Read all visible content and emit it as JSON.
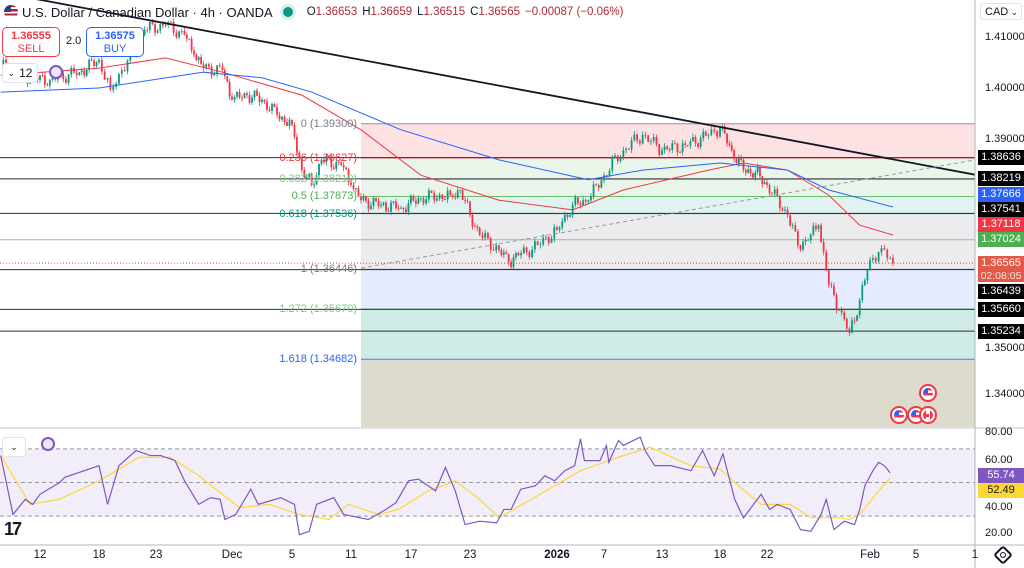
{
  "header": {
    "symbol_title": "U.S. Dollar / Canadian Dollar · 4h · OANDA",
    "open_label": "O",
    "open": "1.36653",
    "high_label": "H",
    "high": "1.36659",
    "low_label": "L",
    "low": "1.36515",
    "close_label": "C",
    "close": "1.36565",
    "change": "−0.00087 (−0.06%)",
    "status_color": "#089981"
  },
  "trade": {
    "sell_price": "1.36555",
    "sell_label": "SELL",
    "spread": "2.0",
    "buy_price": "1.36575",
    "buy_label": "BUY"
  },
  "indicator_collapse": {
    "count": "12"
  },
  "currency_selector": "CAD",
  "colors": {
    "up": "#089981",
    "down": "#f23645",
    "ema_fast": "#f23645",
    "ema_slow": "#2962ff",
    "trendline": "#131722",
    "rsi": "#7e57c2",
    "rsi_ma": "#fdd835"
  },
  "chart_data": [
    {
      "type": "candlestick",
      "instrument": "USDCAD",
      "timeframe": "4h",
      "x_ticks": [
        {
          "label": "12",
          "date": "2025-11-12"
        },
        {
          "label": "18",
          "date": "2025-11-18"
        },
        {
          "label": "23",
          "date": "2025-11-23"
        },
        {
          "label": "Dec",
          "date": "2025-12-01"
        },
        {
          "label": "5",
          "date": "2025-12-05"
        },
        {
          "label": "11",
          "date": "2025-12-11"
        },
        {
          "label": "17",
          "date": "2025-12-17"
        },
        {
          "label": "23",
          "date": "2025-12-23"
        },
        {
          "label": "2026",
          "date": "2026-01-01"
        },
        {
          "label": "7",
          "date": "2026-01-07"
        },
        {
          "label": "13",
          "date": "2026-01-13"
        },
        {
          "label": "18",
          "date": "2026-01-18"
        },
        {
          "label": "22",
          "date": "2026-01-22"
        },
        {
          "label": "Feb",
          "date": "2026-02-01"
        },
        {
          "label": "5",
          "date": "2026-02-05"
        },
        {
          "label": "1",
          "date": "2026-02-10"
        }
      ],
      "y_ticks": [
        "1.41000",
        "1.40000",
        "1.39000",
        "1.35000",
        "1.34000"
      ],
      "close_path": [
        [
          "2025-11-08 00",
          1.4045
        ],
        [
          "2025-11-11 00",
          1.402
        ],
        [
          "2025-11-13 00",
          1.4016
        ],
        [
          "2025-11-16 00",
          1.4031
        ],
        [
          "2025-11-18 00",
          1.4055
        ],
        [
          "2025-11-19 00",
          1.3996
        ],
        [
          "2025-11-20 00",
          1.4035
        ],
        [
          "2025-11-21 00",
          1.4065
        ],
        [
          "2025-11-22 00",
          1.4114
        ],
        [
          "2025-11-24 00",
          1.4124
        ],
        [
          "2025-11-26 00",
          1.4104
        ],
        [
          "2025-11-27 00",
          1.4065
        ],
        [
          "2025-11-28 00",
          1.4039
        ],
        [
          "2025-11-30 00",
          1.4035
        ],
        [
          "2025-12-01 00",
          1.3977
        ],
        [
          "2025-12-02 00",
          1.3986
        ],
        [
          "2025-12-03 00",
          1.3977
        ],
        [
          "2025-12-04 00",
          1.3947
        ],
        [
          "2025-12-05 00",
          1.3928
        ],
        [
          "2025-12-06 00",
          1.3839
        ],
        [
          "2025-12-07 00",
          1.381
        ],
        [
          "2025-12-08 00",
          1.3859
        ],
        [
          "2025-12-10 00",
          1.3849
        ],
        [
          "2025-12-11 00",
          1.381
        ],
        [
          "2025-12-12 00",
          1.378
        ],
        [
          "2025-12-14 00",
          1.3771
        ],
        [
          "2025-12-16 00",
          1.3765
        ],
        [
          "2025-12-18 00",
          1.3784
        ],
        [
          "2025-12-21 00",
          1.379
        ],
        [
          "2025-12-22 00",
          1.38
        ],
        [
          "2025-12-23 00",
          1.3751
        ],
        [
          "2025-12-24 00",
          1.3712
        ],
        [
          "2025-12-26 00",
          1.3682
        ],
        [
          "2025-12-27 00",
          1.3659
        ],
        [
          "2025-12-28 00",
          1.3672
        ],
        [
          "2025-12-30 00",
          1.3692
        ],
        [
          "2026-01-01 00",
          1.3722
        ],
        [
          "2026-01-03 00",
          1.3771
        ],
        [
          "2026-01-05 00",
          1.378
        ],
        [
          "2026-01-07 00",
          1.3829
        ],
        [
          "2026-01-09 00",
          1.3878
        ],
        [
          "2026-01-11 00",
          1.3908
        ],
        [
          "2026-01-13 00",
          1.3878
        ],
        [
          "2026-01-15 00",
          1.3888
        ],
        [
          "2026-01-17 00",
          1.3908
        ],
        [
          "2026-01-18 00",
          1.3922
        ],
        [
          "2026-01-19 00",
          1.3878
        ],
        [
          "2026-01-20 00",
          1.3839
        ],
        [
          "2026-01-21 00",
          1.3835
        ],
        [
          "2026-01-22 00",
          1.381
        ],
        [
          "2026-01-24 00",
          1.3751
        ],
        [
          "2026-01-25 00",
          1.3692
        ],
        [
          "2026-01-26 00",
          1.3702
        ],
        [
          "2026-01-27 00",
          1.3731
        ],
        [
          "2026-01-28 00",
          1.3614
        ],
        [
          "2026-01-29 00",
          1.3565
        ],
        [
          "2026-01-30 00",
          1.352
        ],
        [
          "2026-01-31 00",
          1.3584
        ],
        [
          "2026-02-01 00",
          1.3663
        ],
        [
          "2026-02-02 00",
          1.3686
        ],
        [
          "2026-02-03 00",
          1.36565
        ]
      ],
      "ema_fast": [
        [
          "2025-11-08 00",
          1.4025
        ],
        [
          "2025-11-18 00",
          1.4039
        ],
        [
          "2025-11-24 00",
          1.4059
        ],
        [
          "2025-11-30 00",
          1.4031
        ],
        [
          "2025-12-06 00",
          1.3986
        ],
        [
          "2025-12-12 00",
          1.3918
        ],
        [
          "2025-12-18 00",
          1.3829
        ],
        [
          "2025-12-26 00",
          1.378
        ],
        [
          "2026-01-03 00",
          1.3761
        ],
        [
          "2026-01-09 00",
          1.38
        ],
        [
          "2026-01-17 00",
          1.3839
        ],
        [
          "2026-01-20 00",
          1.3853
        ],
        [
          "2026-01-24 00",
          1.3839
        ],
        [
          "2026-01-28 00",
          1.379
        ],
        [
          "2026-01-31 00",
          1.3731
        ],
        [
          "2026-02-03 00",
          1.37118
        ]
      ],
      "ema_slow": [
        [
          "2025-11-08 00",
          1.3992
        ],
        [
          "2025-11-18 00",
          1.4
        ],
        [
          "2025-11-28 00",
          1.4031
        ],
        [
          "2025-12-03 00",
          1.402
        ],
        [
          "2025-12-07 00",
          1.3992
        ],
        [
          "2025-12-16 00",
          1.3918
        ],
        [
          "2025-12-26 00",
          1.3859
        ],
        [
          "2026-01-05 00",
          1.382
        ],
        [
          "2026-01-11 00",
          1.3839
        ],
        [
          "2026-01-18 00",
          1.3853
        ],
        [
          "2026-01-24 00",
          1.3839
        ],
        [
          "2026-01-28 00",
          1.38
        ],
        [
          "2026-02-03 00",
          1.37666
        ]
      ],
      "trendline": [
        [
          "2025-11-12 00",
          1.4173
        ],
        [
          "2026-02-10 00",
          1.383
        ]
      ],
      "dashed_trendline": [
        [
          "2025-12-12 00",
          1.3647
        ],
        [
          "2026-02-10 00",
          1.3859
        ]
      ],
      "horizontal_lines": [
        1.38636,
        1.38219,
        1.37541,
        1.37024,
        1.36439,
        1.3566,
        1.35234
      ],
      "fibonacci": {
        "start_date": "2025-12-12 00",
        "levels": [
          {
            "ratio": 0,
            "price": 1.393,
            "label": "0 (1.39300)",
            "color": "#787b86",
            "fill": "rgba(242,54,69,0.15)"
          },
          {
            "ratio": 0.236,
            "price": 1.38627,
            "label": "0.236 (1.38627)",
            "color": "#f23645",
            "fill": "rgba(129,199,132,0.16)"
          },
          {
            "ratio": 0.382,
            "price": 1.3821,
            "label": "0.382 (1.38210)",
            "color": "#81c784",
            "fill": "rgba(76,175,80,0.12)"
          },
          {
            "ratio": 0.5,
            "price": 1.37873,
            "label": "0.5 (1.37873)",
            "color": "#4caf50",
            "fill": "rgba(8,153,129,0.12)"
          },
          {
            "ratio": 0.618,
            "price": 1.37536,
            "label": "0.618 (1.37536)",
            "color": "#089981",
            "fill": "rgba(120,123,134,0.14)"
          },
          {
            "ratio": 1,
            "price": 1.36446,
            "label": "1 (1.36446)",
            "color": "#787b86",
            "fill": "rgba(41,98,255,0.12)"
          },
          {
            "ratio": 1.272,
            "price": 1.3567,
            "label": "1.272 (1.35670)",
            "color": "#81c784",
            "fill": "rgba(8,153,129,0.2)"
          },
          {
            "ratio": 1.618,
            "price": 1.34682,
            "label": "1.618 (1.34682)",
            "color": "#2962ff",
            "fill": "rgba(120,110,60,0.25)"
          }
        ]
      },
      "price_tags": [
        {
          "value": "1.38636",
          "bg": "#000000"
        },
        {
          "value": "1.38219",
          "bg": "#000000"
        },
        {
          "value": "1.37666",
          "bg": "#2962ff"
        },
        {
          "value": "1.37541",
          "bg": "#000000"
        },
        {
          "value": "1.37118",
          "bg": "#f23645"
        },
        {
          "value": "1.37024",
          "bg": "#4caf50"
        },
        {
          "value": "1.36565",
          "bg": "#e05a47",
          "countdown": "02:08:05",
          "current": true
        },
        {
          "value": "1.36439",
          "bg": "#000000"
        },
        {
          "value": "1.35660",
          "bg": "#000000"
        },
        {
          "value": "1.35234",
          "bg": "#000000"
        }
      ],
      "events": [
        {
          "flag": "us",
          "date": "2026-02-06 00",
          "row": 0
        },
        {
          "flag": "us",
          "date": "2026-02-03 12",
          "row": 1
        },
        {
          "flag": "us",
          "date": "2026-02-05 00",
          "row": 1
        },
        {
          "flag": "ca",
          "date": "2026-02-06 00",
          "row": 1
        }
      ]
    },
    {
      "type": "line",
      "indicator": "RSI",
      "ylim": [
        10,
        80
      ],
      "y_ticks": [
        "80.00",
        "60.00",
        "40.00",
        "20.00"
      ],
      "bands": [
        70,
        50,
        30
      ],
      "rsi_value": "55.74",
      "ma_value": "52.49",
      "rsi": [
        [
          "2025-11-08 00",
          66
        ],
        [
          "2025-11-09 06",
          31
        ],
        [
          "2025-11-10 12",
          40
        ],
        [
          "2025-11-11 06",
          37
        ],
        [
          "2025-11-12 00",
          43
        ],
        [
          "2025-11-14 00",
          50
        ],
        [
          "2025-11-14 12",
          53
        ],
        [
          "2025-11-18 00",
          60
        ],
        [
          "2025-11-18 18",
          37
        ],
        [
          "2025-11-19 18",
          60
        ],
        [
          "2025-11-21 06",
          69
        ],
        [
          "2025-11-22 12",
          66
        ],
        [
          "2025-11-23 12",
          66
        ],
        [
          "2025-11-25 00",
          63
        ],
        [
          "2025-11-26 00",
          51
        ],
        [
          "2025-11-27 12",
          37
        ],
        [
          "2025-11-28 18",
          41
        ],
        [
          "2025-11-29 18",
          40
        ],
        [
          "2025-11-30 06",
          28
        ],
        [
          "2025-12-01 06",
          31
        ],
        [
          "2025-12-02 06",
          46
        ],
        [
          "2025-12-02 18",
          37
        ],
        [
          "2025-12-04 06",
          41
        ],
        [
          "2025-12-05 06",
          37
        ],
        [
          "2025-12-05 18",
          19
        ],
        [
          "2025-12-06 18",
          21
        ],
        [
          "2025-12-07 12",
          37
        ],
        [
          "2025-12-09 06",
          41
        ],
        [
          "2025-12-10 06",
          31
        ],
        [
          "2025-12-12 18",
          28
        ],
        [
          "2025-12-14 12",
          34
        ],
        [
          "2025-12-15 12",
          38
        ],
        [
          "2025-12-16 18",
          51
        ],
        [
          "2025-12-17 18",
          52
        ],
        [
          "2025-12-19 12",
          45
        ],
        [
          "2025-12-20 12",
          59
        ],
        [
          "2025-12-21 12",
          45
        ],
        [
          "2025-12-22 12",
          25
        ],
        [
          "2025-12-24 00",
          27
        ],
        [
          "2025-12-25 18",
          26
        ],
        [
          "2025-12-26 12",
          34
        ],
        [
          "2025-12-27 06",
          34
        ],
        [
          "2025-12-28 06",
          46
        ],
        [
          "2025-12-29 18",
          48
        ],
        [
          "2025-12-30 18",
          54
        ],
        [
          "2025-12-31 18",
          51
        ],
        [
          "2026-01-02 00",
          57
        ],
        [
          "2026-01-03 06",
          60
        ],
        [
          "2026-01-04 00",
          76
        ],
        [
          "2026-01-04 12",
          63
        ],
        [
          "2026-01-06 12",
          63
        ],
        [
          "2026-01-07 06",
          72
        ],
        [
          "2026-01-07 12",
          62
        ],
        [
          "2026-01-08 12",
          75
        ],
        [
          "2026-01-09 00",
          72
        ],
        [
          "2026-01-10 18",
          77
        ],
        [
          "2026-01-11 06",
          69
        ],
        [
          "2026-01-12 06",
          60
        ],
        [
          "2026-01-13 18",
          60
        ],
        [
          "2026-01-15 12",
          57
        ],
        [
          "2026-01-16 12",
          69
        ],
        [
          "2026-01-17 12",
          54
        ],
        [
          "2026-01-18 06",
          67
        ],
        [
          "2026-01-19 06",
          40
        ],
        [
          "2026-01-20 00",
          29
        ],
        [
          "2026-01-21 12",
          43
        ],
        [
          "2026-01-22 06",
          34
        ],
        [
          "2026-01-23 00",
          37
        ],
        [
          "2026-01-24 06",
          34
        ],
        [
          "2026-01-25 06",
          22
        ],
        [
          "2026-01-26 06",
          21
        ],
        [
          "2026-01-27 06",
          31
        ],
        [
          "2026-01-27 18",
          40
        ],
        [
          "2026-01-28 12",
          22
        ],
        [
          "2026-01-29 12",
          27
        ],
        [
          "2026-01-30 12",
          25
        ],
        [
          "2026-01-31 00",
          34
        ],
        [
          "2026-01-31 12",
          48
        ],
        [
          "2026-02-01 06",
          57
        ],
        [
          "2026-02-01 18",
          62
        ],
        [
          "2026-02-02 06",
          60
        ],
        [
          "2026-02-02 18",
          55.74
        ]
      ],
      "rsi_ma": [
        [
          "2025-11-08 00",
          66
        ],
        [
          "2025-11-11 00",
          37
        ],
        [
          "2025-11-14 00",
          40
        ],
        [
          "2025-11-18 00",
          51
        ],
        [
          "2025-11-21 12",
          65
        ],
        [
          "2025-11-24 12",
          65
        ],
        [
          "2025-11-27 12",
          54
        ],
        [
          "2025-12-01 12",
          35
        ],
        [
          "2025-12-03 12",
          37
        ],
        [
          "2025-12-05 18",
          31
        ],
        [
          "2025-12-08 18",
          28
        ],
        [
          "2025-12-10 18",
          37
        ],
        [
          "2025-12-13 18",
          31
        ],
        [
          "2025-12-15 18",
          34
        ],
        [
          "2025-12-18 18",
          45
        ],
        [
          "2025-12-21 12",
          51
        ],
        [
          "2025-12-24 00",
          40
        ],
        [
          "2025-12-26 00",
          29
        ],
        [
          "2025-12-30 06",
          43
        ],
        [
          "2026-01-04 00",
          57
        ],
        [
          "2026-01-08 12",
          65
        ],
        [
          "2026-01-11 18",
          71
        ],
        [
          "2026-01-15 12",
          60
        ],
        [
          "2026-01-18 00",
          58
        ],
        [
          "2026-01-19 18",
          47
        ],
        [
          "2026-01-21 12",
          37
        ],
        [
          "2026-01-24 06",
          37
        ],
        [
          "2026-01-26 06",
          29
        ],
        [
          "2026-01-29 00",
          29
        ],
        [
          "2026-01-30 00",
          28
        ],
        [
          "2026-01-31 00",
          31
        ],
        [
          "2026-02-01 18",
          45
        ],
        [
          "2026-02-02 18",
          52.49
        ]
      ]
    }
  ]
}
